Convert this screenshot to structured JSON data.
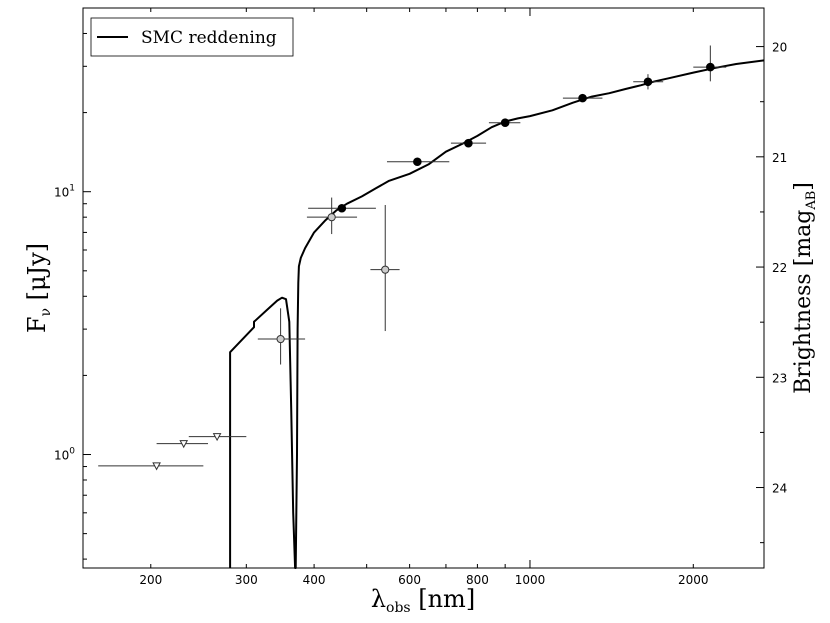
{
  "chart_data": {
    "type": "scatter",
    "xscale": "log",
    "yscale": "log",
    "xlim": [
      150,
      2700
    ],
    "ylim": [
      0.37,
      50
    ],
    "right_ylim": [
      19.65,
      24.73
    ],
    "grid": false,
    "legend_placement": "top-left",
    "xlabel": {
      "main": "λ",
      "sub": "obs",
      "rest": " [nm]"
    },
    "ylabel": {
      "main": "F",
      "sub": "ν",
      "rest": " [μJy]"
    },
    "right_ylabel": {
      "main": "Brightness [mag",
      "sub": "AB",
      "rest": "]"
    },
    "x_tick_labels": [
      {
        "v": 200,
        "t": "200"
      },
      {
        "v": 300,
        "t": "300"
      },
      {
        "v": 400,
        "t": "400"
      },
      {
        "v": 600,
        "t": "600"
      },
      {
        "v": 800,
        "t": "800"
      },
      {
        "v": 1000,
        "t": "1000"
      },
      {
        "v": 2000,
        "t": "2000"
      }
    ],
    "y_tick_labels": [
      {
        "v": 1,
        "base": "10",
        "exp": "0"
      },
      {
        "v": 10,
        "base": "10",
        "exp": "1"
      }
    ],
    "right_tick_labels": [
      "20",
      "21",
      "22",
      "23",
      "24"
    ],
    "legend": [
      {
        "label": "SMC reddening",
        "color": "#000000"
      }
    ],
    "model_curve": {
      "name": "SMC reddening",
      "x": [
        280,
        280,
        310,
        310,
        330,
        342,
        349,
        355,
        360,
        363,
        366,
        369,
        370,
        372,
        373,
        374,
        375,
        378,
        385,
        400,
        420,
        440,
        460,
        490,
        520,
        550,
        600,
        650,
        700,
        750,
        800,
        850,
        900,
        950,
        1000,
        1100,
        1200,
        1300,
        1400,
        1500,
        1600,
        1700,
        1800,
        2000,
        2200,
        2400,
        2700
      ],
      "y": [
        0.37,
        2.45,
        3.05,
        3.2,
        3.6,
        3.85,
        3.95,
        3.9,
        3.2,
        1.5,
        0.6,
        0.37,
        0.37,
        1.0,
        3.0,
        4.5,
        5.2,
        5.6,
        6.1,
        7.0,
        7.8,
        8.5,
        9.0,
        9.6,
        10.3,
        11.0,
        11.7,
        12.7,
        14.2,
        15.2,
        16.3,
        17.6,
        18.5,
        19.0,
        19.4,
        20.4,
        21.8,
        23.0,
        23.7,
        24.6,
        25.4,
        26.3,
        27.0,
        28.4,
        29.6,
        30.6,
        31.6
      ]
    },
    "detections_filled": [
      {
        "x": 450,
        "y": 8.65,
        "xerr": [
          390,
          520
        ],
        "yerr": null
      },
      {
        "x": 620,
        "y": 13.0,
        "xerr": [
          545,
          710
        ],
        "yerr": null
      },
      {
        "x": 770,
        "y": 15.3,
        "xerr": [
          715,
          830
        ],
        "yerr": null
      },
      {
        "x": 900,
        "y": 18.3,
        "xerr": [
          840,
          960
        ],
        "yerr": null
      },
      {
        "x": 1250,
        "y": 22.7,
        "xerr": [
          1150,
          1360
        ],
        "yerr": null
      },
      {
        "x": 1650,
        "y": 26.2,
        "xerr": [
          1550,
          1760
        ],
        "yerr": [
          24.5,
          28.0
        ]
      },
      {
        "x": 2150,
        "y": 29.8,
        "xerr": [
          2000,
          2300
        ],
        "yerr": [
          26.3,
          36.0
        ]
      }
    ],
    "detections_open": [
      {
        "x": 347,
        "y": 2.75,
        "xerr": [
          315,
          385
        ],
        "yerr": [
          2.2,
          3.6
        ]
      },
      {
        "x": 431,
        "y": 8.0,
        "xerr": [
          388,
          480
        ],
        "yerr": [
          6.9,
          9.5
        ]
      },
      {
        "x": 541,
        "y": 5.05,
        "xerr": [
          508,
          575
        ],
        "yerr": [
          2.95,
          8.9
        ]
      }
    ],
    "upper_limits": [
      {
        "x": 205,
        "y": 0.905,
        "xerr": [
          160,
          250
        ]
      },
      {
        "x": 230,
        "y": 1.1,
        "xerr": [
          205,
          255
        ]
      },
      {
        "x": 265,
        "y": 1.17,
        "xerr": [
          235,
          300
        ]
      }
    ]
  }
}
